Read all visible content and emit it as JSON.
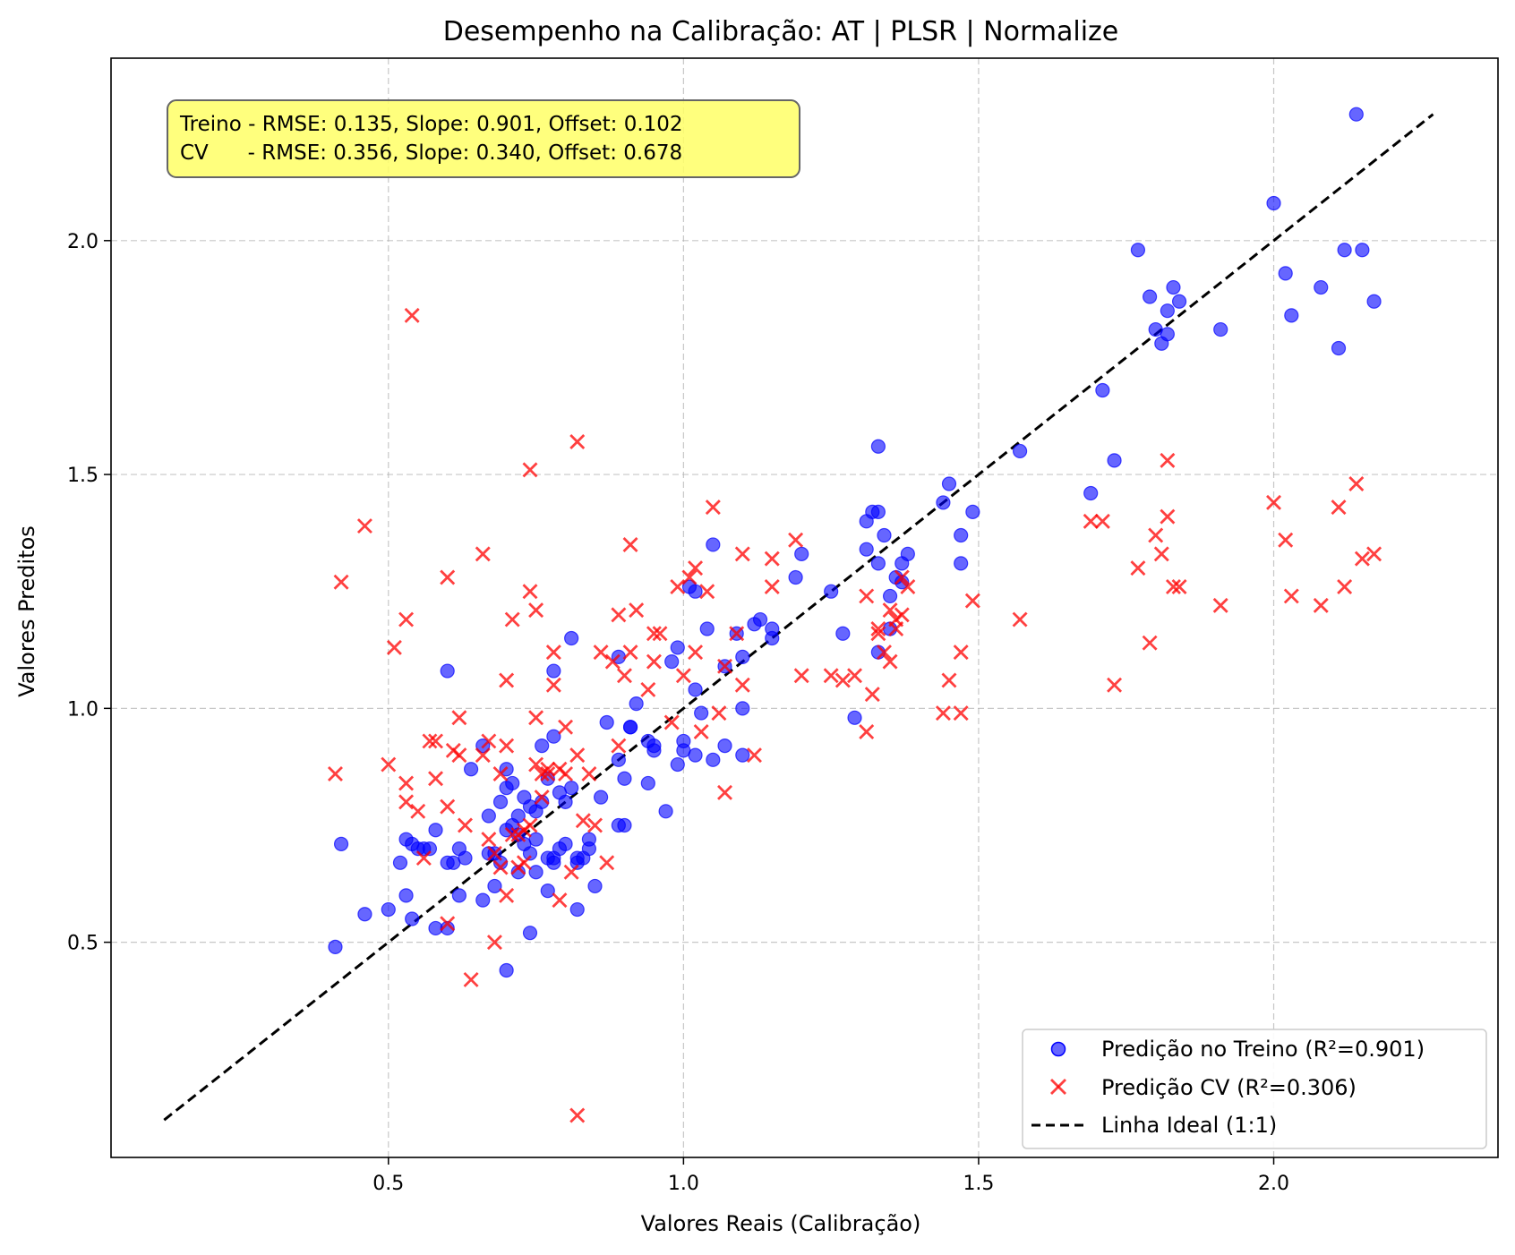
{
  "chart_data": {
    "type": "scatter",
    "title": "Desempenho na Calibração: AT | PLSR | Normalize",
    "xlabel": "Valores Reais (Calibração)",
    "ylabel": "Valores Preditos",
    "xlim": [
      0.03,
      2.38
    ],
    "ylim": [
      0.04,
      2.39
    ],
    "xticks": [
      0.5,
      1.0,
      1.5,
      2.0
    ],
    "yticks": [
      0.5,
      1.0,
      1.5,
      2.0
    ],
    "xtick_labels": [
      "0.5",
      "1.0",
      "1.5",
      "2.0"
    ],
    "ytick_labels": [
      "0.5",
      "1.0",
      "1.5",
      "2.0"
    ],
    "grid": true,
    "legend_position": "bottom-right",
    "stats_box": {
      "line1": "Treino - RMSE: 0.135, Slope: 0.901, Offset: 0.102",
      "line2": "CV      - RMSE: 0.356, Slope: 0.340, Offset: 0.678",
      "background": "#ffff66"
    },
    "ideal_line": {
      "name": "Linha Ideal (1:1)",
      "x": [
        0.12,
        2.27
      ],
      "y": [
        0.12,
        2.27
      ],
      "color": "#000000"
    },
    "series": [
      {
        "name": "Predição no Treino (R²=0.901)",
        "marker": "circle",
        "color": "#0000ff",
        "points": [
          [
            0.41,
            0.49
          ],
          [
            0.42,
            0.71
          ],
          [
            0.46,
            0.56
          ],
          [
            0.5,
            0.57
          ],
          [
            0.52,
            0.67
          ],
          [
            0.53,
            0.72
          ],
          [
            0.53,
            0.6
          ],
          [
            0.54,
            0.71
          ],
          [
            0.55,
            0.7
          ],
          [
            0.54,
            0.55
          ],
          [
            0.56,
            0.7
          ],
          [
            0.57,
            0.7
          ],
          [
            0.58,
            0.74
          ],
          [
            0.58,
            0.53
          ],
          [
            0.6,
            0.53
          ],
          [
            0.6,
            0.67
          ],
          [
            0.6,
            1.08
          ],
          [
            0.61,
            0.67
          ],
          [
            0.62,
            0.7
          ],
          [
            0.62,
            0.6
          ],
          [
            0.63,
            0.68
          ],
          [
            0.64,
            0.87
          ],
          [
            0.66,
            0.59
          ],
          [
            0.66,
            0.92
          ],
          [
            0.67,
            0.77
          ],
          [
            0.67,
            0.69
          ],
          [
            0.68,
            0.62
          ],
          [
            0.68,
            0.69
          ],
          [
            0.69,
            0.8
          ],
          [
            0.69,
            0.67
          ],
          [
            0.7,
            0.74
          ],
          [
            0.7,
            0.83
          ],
          [
            0.7,
            0.87
          ],
          [
            0.7,
            0.44
          ],
          [
            0.71,
            0.75
          ],
          [
            0.71,
            0.84
          ],
          [
            0.72,
            0.73
          ],
          [
            0.72,
            0.65
          ],
          [
            0.72,
            0.77
          ],
          [
            0.73,
            0.71
          ],
          [
            0.73,
            0.81
          ],
          [
            0.74,
            0.69
          ],
          [
            0.74,
            0.79
          ],
          [
            0.74,
            0.52
          ],
          [
            0.75,
            0.78
          ],
          [
            0.75,
            0.65
          ],
          [
            0.75,
            0.72
          ],
          [
            0.76,
            0.92
          ],
          [
            0.76,
            0.8
          ],
          [
            0.77,
            0.85
          ],
          [
            0.77,
            0.61
          ],
          [
            0.77,
            0.68
          ],
          [
            0.78,
            1.08
          ],
          [
            0.78,
            0.67
          ],
          [
            0.78,
            0.68
          ],
          [
            0.78,
            0.94
          ],
          [
            0.79,
            0.7
          ],
          [
            0.79,
            0.82
          ],
          [
            0.8,
            0.8
          ],
          [
            0.8,
            0.71
          ],
          [
            0.81,
            1.15
          ],
          [
            0.81,
            0.83
          ],
          [
            0.82,
            0.57
          ],
          [
            0.82,
            0.68
          ],
          [
            0.82,
            0.67
          ],
          [
            0.83,
            0.68
          ],
          [
            0.84,
            0.72
          ],
          [
            0.84,
            0.7
          ],
          [
            0.85,
            0.62
          ],
          [
            0.86,
            0.81
          ],
          [
            0.87,
            0.97
          ],
          [
            0.89,
            0.75
          ],
          [
            0.89,
            0.89
          ],
          [
            0.89,
            1.11
          ],
          [
            0.9,
            0.85
          ],
          [
            0.9,
            0.75
          ],
          [
            0.91,
            0.96
          ],
          [
            0.91,
            0.96
          ],
          [
            0.92,
            1.01
          ],
          [
            0.94,
            0.93
          ],
          [
            0.94,
            0.84
          ],
          [
            0.95,
            0.91
          ],
          [
            0.95,
            0.92
          ],
          [
            0.97,
            0.78
          ],
          [
            0.98,
            1.1
          ],
          [
            0.99,
            0.88
          ],
          [
            0.99,
            1.13
          ],
          [
            1.0,
            0.91
          ],
          [
            1.0,
            0.93
          ],
          [
            1.01,
            1.26
          ],
          [
            1.02,
            1.25
          ],
          [
            1.02,
            1.04
          ],
          [
            1.02,
            0.9
          ],
          [
            1.03,
            0.99
          ],
          [
            1.04,
            1.17
          ],
          [
            1.05,
            0.89
          ],
          [
            1.05,
            1.35
          ],
          [
            1.07,
            1.09
          ],
          [
            1.07,
            0.92
          ],
          [
            1.09,
            1.16
          ],
          [
            1.1,
            1.0
          ],
          [
            1.1,
            1.11
          ],
          [
            1.1,
            0.9
          ],
          [
            1.12,
            1.18
          ],
          [
            1.13,
            1.19
          ],
          [
            1.15,
            1.17
          ],
          [
            1.15,
            1.15
          ],
          [
            1.19,
            1.28
          ],
          [
            1.2,
            1.33
          ],
          [
            1.25,
            1.25
          ],
          [
            1.27,
            1.16
          ],
          [
            1.29,
            0.98
          ],
          [
            1.31,
            1.34
          ],
          [
            1.31,
            1.4
          ],
          [
            1.32,
            1.42
          ],
          [
            1.33,
            1.42
          ],
          [
            1.33,
            1.31
          ],
          [
            1.33,
            1.12
          ],
          [
            1.33,
            1.56
          ],
          [
            1.34,
            1.37
          ],
          [
            1.35,
            1.24
          ],
          [
            1.35,
            1.17
          ],
          [
            1.36,
            1.28
          ],
          [
            1.37,
            1.27
          ],
          [
            1.37,
            1.31
          ],
          [
            1.38,
            1.33
          ],
          [
            1.44,
            1.44
          ],
          [
            1.45,
            1.48
          ],
          [
            1.47,
            1.37
          ],
          [
            1.47,
            1.31
          ],
          [
            1.49,
            1.42
          ],
          [
            1.57,
            1.55
          ],
          [
            1.69,
            1.46
          ],
          [
            1.71,
            1.68
          ],
          [
            1.73,
            1.53
          ],
          [
            1.77,
            1.98
          ],
          [
            1.79,
            1.88
          ],
          [
            1.8,
            1.81
          ],
          [
            1.81,
            1.78
          ],
          [
            1.82,
            1.85
          ],
          [
            1.82,
            1.8
          ],
          [
            1.83,
            1.9
          ],
          [
            1.84,
            1.87
          ],
          [
            1.91,
            1.81
          ],
          [
            2.0,
            2.08
          ],
          [
            2.02,
            1.93
          ],
          [
            2.03,
            1.84
          ],
          [
            2.08,
            1.9
          ],
          [
            2.11,
            1.77
          ],
          [
            2.12,
            1.98
          ],
          [
            2.14,
            2.27
          ],
          [
            2.15,
            1.98
          ],
          [
            2.17,
            1.87
          ]
        ]
      },
      {
        "name": "Predição CV (R²=0.306)",
        "marker": "x",
        "color": "#ff0000",
        "points": [
          [
            0.41,
            0.86
          ],
          [
            0.42,
            1.27
          ],
          [
            0.46,
            1.39
          ],
          [
            0.5,
            0.88
          ],
          [
            0.51,
            1.13
          ],
          [
            0.53,
            0.84
          ],
          [
            0.53,
            0.8
          ],
          [
            0.53,
            1.19
          ],
          [
            0.54,
            1.84
          ],
          [
            0.55,
            0.78
          ],
          [
            0.56,
            0.68
          ],
          [
            0.57,
            0.93
          ],
          [
            0.58,
            0.93
          ],
          [
            0.58,
            0.85
          ],
          [
            0.6,
            0.54
          ],
          [
            0.6,
            1.28
          ],
          [
            0.6,
            0.79
          ],
          [
            0.61,
            0.91
          ],
          [
            0.62,
            0.9
          ],
          [
            0.62,
            0.98
          ],
          [
            0.63,
            0.75
          ],
          [
            0.64,
            0.42
          ],
          [
            0.66,
            1.33
          ],
          [
            0.66,
            0.9
          ],
          [
            0.67,
            0.93
          ],
          [
            0.67,
            0.72
          ],
          [
            0.68,
            0.5
          ],
          [
            0.68,
            0.69
          ],
          [
            0.69,
            0.86
          ],
          [
            0.69,
            0.66
          ],
          [
            0.7,
            1.06
          ],
          [
            0.7,
            0.92
          ],
          [
            0.7,
            0.6
          ],
          [
            0.71,
            0.73
          ],
          [
            0.71,
            1.19
          ],
          [
            0.72,
            0.73
          ],
          [
            0.72,
            0.66
          ],
          [
            0.73,
            0.74
          ],
          [
            0.73,
            0.67
          ],
          [
            0.74,
            0.75
          ],
          [
            0.74,
            1.51
          ],
          [
            0.74,
            1.25
          ],
          [
            0.75,
            0.98
          ],
          [
            0.75,
            0.88
          ],
          [
            0.75,
            1.21
          ],
          [
            0.76,
            0.86
          ],
          [
            0.76,
            0.81
          ],
          [
            0.77,
            0.87
          ],
          [
            0.77,
            0.86
          ],
          [
            0.78,
            1.05
          ],
          [
            0.78,
            1.12
          ],
          [
            0.79,
            0.87
          ],
          [
            0.79,
            0.59
          ],
          [
            0.8,
            0.96
          ],
          [
            0.8,
            0.86
          ],
          [
            0.81,
            0.65
          ],
          [
            0.82,
            0.13
          ],
          [
            0.82,
            1.57
          ],
          [
            0.82,
            0.9
          ],
          [
            0.83,
            0.76
          ],
          [
            0.84,
            0.86
          ],
          [
            0.85,
            0.75
          ],
          [
            0.86,
            1.12
          ],
          [
            0.87,
            0.67
          ],
          [
            0.88,
            1.1
          ],
          [
            0.89,
            1.2
          ],
          [
            0.89,
            0.92
          ],
          [
            0.9,
            1.07
          ],
          [
            0.91,
            1.12
          ],
          [
            0.91,
            1.35
          ],
          [
            0.92,
            1.21
          ],
          [
            0.94,
            1.04
          ],
          [
            0.95,
            1.1
          ],
          [
            0.95,
            1.16
          ],
          [
            0.96,
            1.16
          ],
          [
            0.98,
            0.97
          ],
          [
            0.99,
            1.26
          ],
          [
            1.0,
            1.07
          ],
          [
            1.01,
            1.28
          ],
          [
            1.02,
            1.12
          ],
          [
            1.02,
            1.3
          ],
          [
            1.03,
            0.95
          ],
          [
            1.04,
            1.25
          ],
          [
            1.05,
            1.43
          ],
          [
            1.06,
            0.99
          ],
          [
            1.07,
            0.82
          ],
          [
            1.07,
            1.09
          ],
          [
            1.09,
            1.16
          ],
          [
            1.1,
            1.05
          ],
          [
            1.1,
            1.33
          ],
          [
            1.12,
            0.9
          ],
          [
            1.15,
            1.32
          ],
          [
            1.15,
            1.26
          ],
          [
            1.19,
            1.36
          ],
          [
            1.2,
            1.07
          ],
          [
            1.25,
            1.07
          ],
          [
            1.27,
            1.06
          ],
          [
            1.29,
            1.07
          ],
          [
            1.31,
            0.95
          ],
          [
            1.31,
            1.24
          ],
          [
            1.32,
            1.03
          ],
          [
            1.33,
            1.17
          ],
          [
            1.33,
            1.16
          ],
          [
            1.34,
            1.12
          ],
          [
            1.35,
            1.1
          ],
          [
            1.35,
            1.21
          ],
          [
            1.36,
            1.19
          ],
          [
            1.36,
            1.17
          ],
          [
            1.37,
            1.2
          ],
          [
            1.37,
            1.28
          ],
          [
            1.38,
            1.26
          ],
          [
            1.44,
            0.99
          ],
          [
            1.45,
            1.06
          ],
          [
            1.47,
            1.12
          ],
          [
            1.47,
            0.99
          ],
          [
            1.49,
            1.23
          ],
          [
            1.57,
            1.19
          ],
          [
            1.69,
            1.4
          ],
          [
            1.71,
            1.4
          ],
          [
            1.73,
            1.05
          ],
          [
            1.77,
            1.3
          ],
          [
            1.79,
            1.14
          ],
          [
            1.8,
            1.37
          ],
          [
            1.81,
            1.33
          ],
          [
            1.82,
            1.41
          ],
          [
            1.82,
            1.53
          ],
          [
            1.83,
            1.26
          ],
          [
            1.84,
            1.26
          ],
          [
            1.91,
            1.22
          ],
          [
            2.0,
            1.44
          ],
          [
            2.02,
            1.36
          ],
          [
            2.03,
            1.24
          ],
          [
            2.08,
            1.22
          ],
          [
            2.11,
            1.43
          ],
          [
            2.12,
            1.26
          ],
          [
            2.14,
            1.48
          ],
          [
            2.15,
            1.32
          ],
          [
            2.17,
            1.33
          ]
        ]
      }
    ]
  }
}
